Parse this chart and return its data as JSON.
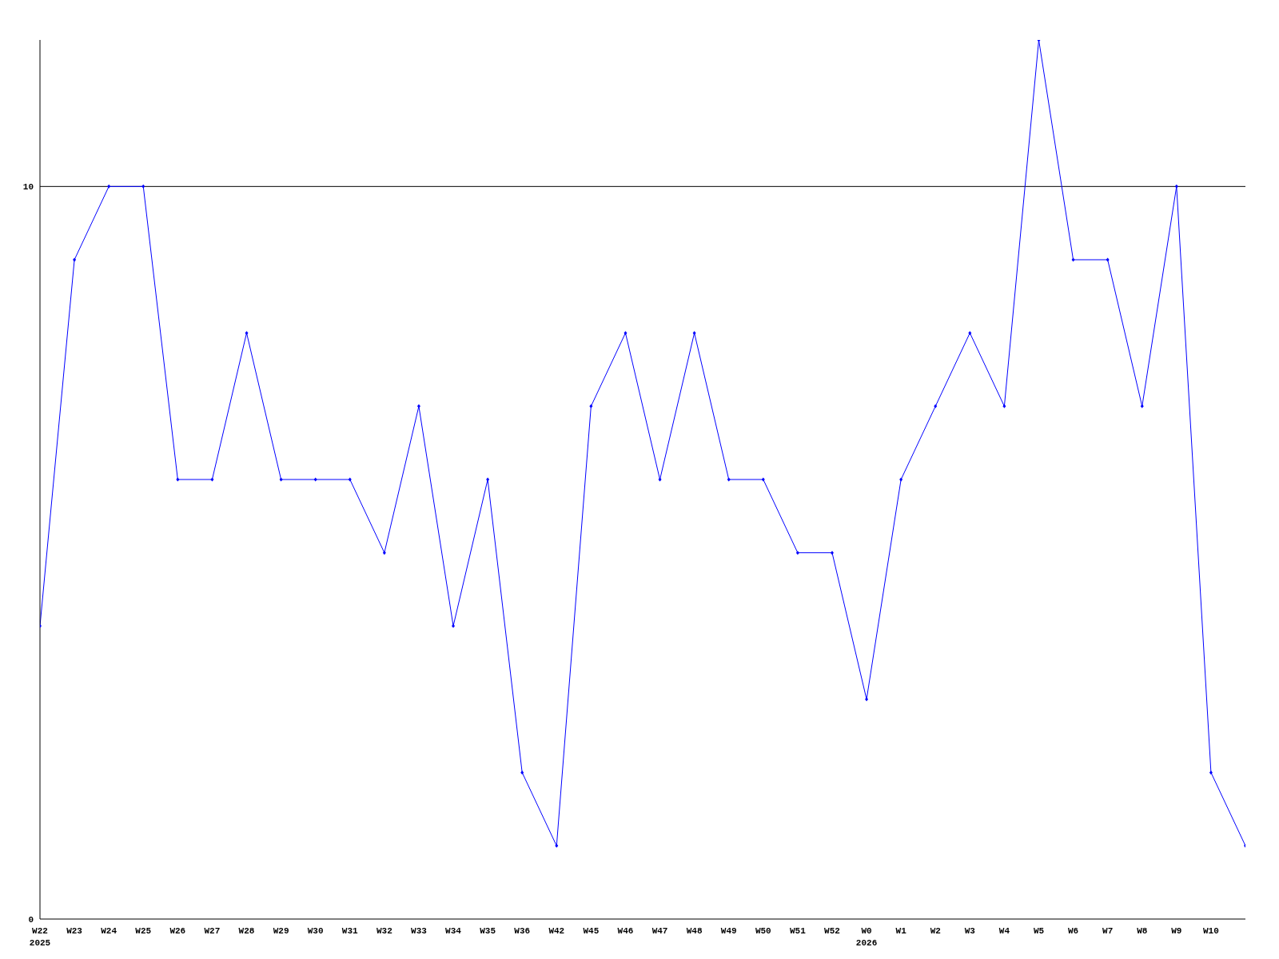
{
  "chart_data": {
    "type": "line",
    "categories": [
      "W22",
      "W23",
      "W24",
      "W25",
      "W26",
      "W27",
      "W28",
      "W29",
      "W30",
      "W31",
      "W32",
      "W33",
      "W34",
      "W35",
      "W36",
      "W42",
      "W45",
      "W46",
      "W47",
      "W48",
      "W49",
      "W50",
      "W51",
      "W52",
      "W0",
      "W1",
      "W2",
      "W3",
      "W4",
      "W5",
      "W6",
      "W7",
      "W8",
      "W9",
      "W10",
      null
    ],
    "series": [
      {
        "color": "#0000ff",
        "values": [
          4,
          9,
          10,
          10,
          6,
          6,
          8,
          6,
          6,
          6,
          5,
          7,
          4,
          6,
          2,
          1,
          7,
          8,
          6,
          8,
          6,
          6,
          5,
          5,
          3,
          6,
          7,
          8,
          7,
          12,
          9,
          9,
          7,
          10,
          2,
          1
        ]
      }
    ],
    "ylim": [
      0,
      12
    ],
    "yticks": [
      0,
      10
    ],
    "ref_lines": [
      {
        "axis": "y",
        "value": 10,
        "color": "#000000"
      }
    ],
    "annotations": [
      "2025",
      "2026"
    ],
    "marker": "diamond",
    "line_style": "solid"
  }
}
